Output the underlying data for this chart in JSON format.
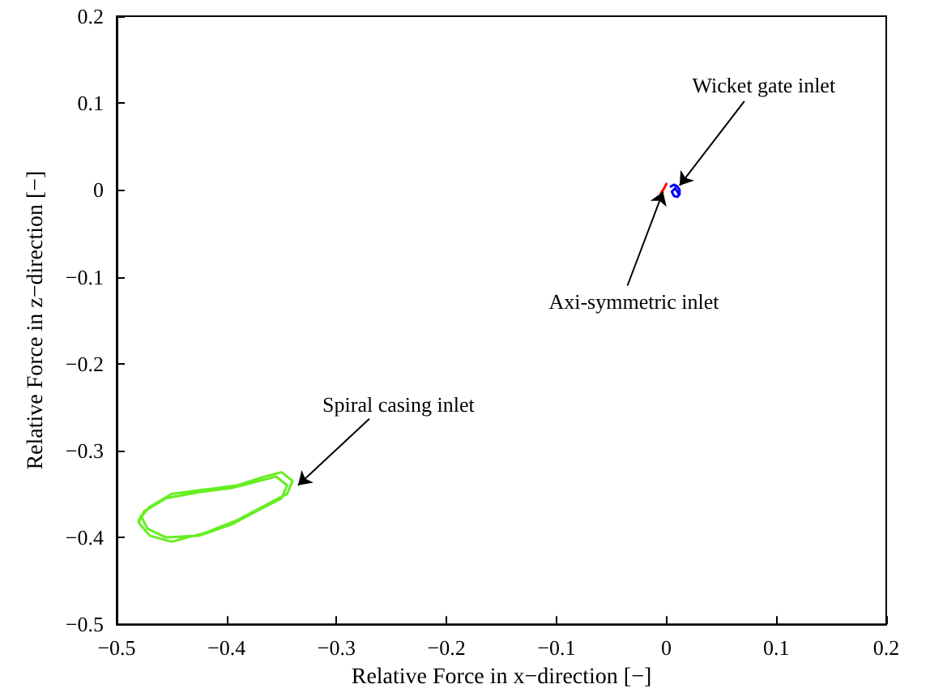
{
  "chart_data": {
    "type": "line",
    "xlabel": "Relative Force in x−direction [−]",
    "ylabel": "Relative Force in z−direction [−]",
    "xlim": [
      -0.5,
      0.2
    ],
    "xticks": [
      -0.5,
      -0.4,
      -0.3,
      -0.2,
      -0.1,
      0,
      0.1,
      0.2
    ],
    "ylim": [
      -0.5,
      0.2
    ],
    "yticks": [
      -0.5,
      -0.4,
      -0.3,
      -0.2,
      -0.1,
      0,
      0.1,
      0.2
    ],
    "grid": false,
    "marker": "none",
    "line_style": "solid",
    "series": [
      {
        "color": "#66ee22",
        "x": [
          -0.48,
          -0.47,
          -0.45,
          -0.42,
          -0.39,
          -0.365,
          -0.35,
          -0.34,
          -0.345,
          -0.36,
          -0.39,
          -0.42,
          -0.45,
          -0.47,
          -0.48,
          -0.475,
          -0.455,
          -0.425,
          -0.395,
          -0.37,
          -0.355,
          -0.345,
          -0.35,
          -0.37,
          -0.395,
          -0.425,
          -0.455,
          -0.472,
          -0.478
        ],
        "values": [
          -0.38,
          -0.365,
          -0.35,
          -0.345,
          -0.34,
          -0.33,
          -0.325,
          -0.335,
          -0.35,
          -0.36,
          -0.38,
          -0.395,
          -0.405,
          -0.398,
          -0.383,
          -0.37,
          -0.355,
          -0.348,
          -0.343,
          -0.335,
          -0.33,
          -0.34,
          -0.355,
          -0.368,
          -0.385,
          -0.398,
          -0.4,
          -0.39,
          -0.375
        ]
      },
      {
        "color": "#0000ff",
        "x": [
          0.004,
          0.007,
          0.01,
          0.012,
          0.012,
          0.01,
          0.007,
          0.005,
          0.008,
          0.011
        ],
        "values": [
          0.004,
          0.006,
          0.004,
          0.0,
          -0.005,
          -0.008,
          -0.007,
          -0.002,
          0.002,
          -0.004
        ]
      },
      {
        "color": "#ff0000",
        "x": [
          -0.005,
          -0.002,
          0.0
        ],
        "values": [
          -0.004,
          0.002,
          0.007
        ]
      }
    ],
    "annotations": [
      {
        "text": "Wicket gate inlet",
        "x": 0.012,
        "y": 0.005
      },
      {
        "text": "Axi-symmetric inlet",
        "x": -0.003,
        "y": -0.002
      },
      {
        "text": "Spiral casing inlet",
        "x": -0.335,
        "y": -0.34
      }
    ]
  }
}
